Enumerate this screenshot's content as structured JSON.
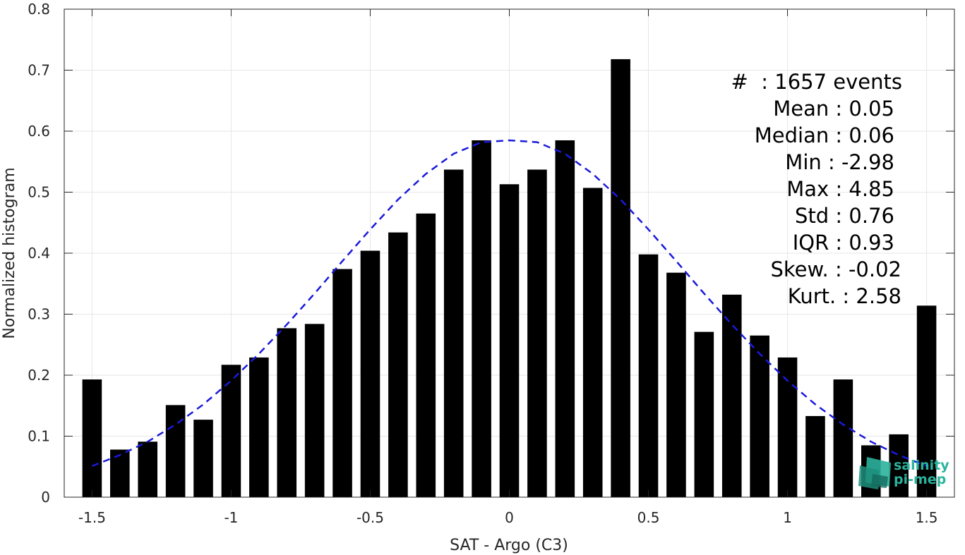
{
  "chart_data": {
    "type": "bar",
    "xlabel": "SAT - Argo (C3)",
    "ylabel": "Normalized histogram",
    "xlim": [
      -1.6,
      1.6
    ],
    "ylim": [
      0,
      0.8
    ],
    "grid": true,
    "x_ticks": [
      -1.5,
      -1,
      -0.5,
      0,
      0.5,
      1,
      1.5
    ],
    "x_tick_labels": [
      "-1.5",
      "-1",
      "-0.5",
      "0",
      "0.5",
      "1",
      "1.5"
    ],
    "y_ticks": [
      0,
      0.1,
      0.2,
      0.3,
      0.4,
      0.5,
      0.6,
      0.7,
      0.8
    ],
    "y_tick_labels": [
      "0",
      "0.1",
      "0.2",
      "0.3",
      "0.4",
      "0.5",
      "0.6",
      "0.7",
      "0.8"
    ],
    "series": [
      {
        "kind": "bar",
        "color": "#000000",
        "x": [
          -1.5,
          -1.4,
          -1.3,
          -1.2,
          -1.1,
          -1.0,
          -0.9,
          -0.8,
          -0.7,
          -0.6,
          -0.5,
          -0.4,
          -0.3,
          -0.2,
          -0.1,
          0.0,
          0.1,
          0.2,
          0.3,
          0.4,
          0.5,
          0.6,
          0.7,
          0.8,
          0.9,
          1.0,
          1.1,
          1.2,
          1.3,
          1.4,
          1.5
        ],
        "values": [
          0.193,
          0.078,
          0.091,
          0.151,
          0.127,
          0.217,
          0.229,
          0.277,
          0.284,
          0.374,
          0.404,
          0.434,
          0.465,
          0.537,
          0.585,
          0.513,
          0.537,
          0.585,
          0.507,
          0.718,
          0.398,
          0.368,
          0.271,
          0.332,
          0.265,
          0.229,
          0.133,
          0.193,
          0.085,
          0.103,
          0.314
        ]
      },
      {
        "kind": "line",
        "style": "dashed",
        "color": "#1a1adb",
        "x": [
          -1.5,
          -1.4,
          -1.3,
          -1.2,
          -1.1,
          -1.0,
          -0.9,
          -0.8,
          -0.7,
          -0.6,
          -0.5,
          -0.4,
          -0.3,
          -0.2,
          -0.1,
          0.0,
          0.1,
          0.2,
          0.3,
          0.4,
          0.5,
          0.6,
          0.7,
          0.8,
          0.9,
          1.0,
          1.1,
          1.2,
          1.3,
          1.4,
          1.5
        ],
        "values": [
          0.051,
          0.069,
          0.091,
          0.119,
          0.152,
          0.191,
          0.235,
          0.283,
          0.334,
          0.387,
          0.439,
          0.488,
          0.53,
          0.563,
          0.582,
          0.585,
          0.582,
          0.563,
          0.53,
          0.488,
          0.439,
          0.387,
          0.334,
          0.283,
          0.235,
          0.191,
          0.152,
          0.119,
          0.091,
          0.069,
          0.051
        ]
      }
    ],
    "annotations": [
      "#  : 1657 events",
      "Mean : 0.05",
      "Median : 0.06",
      "Min : -2.98",
      "Max : 4.85",
      "Std : 0.76",
      "IQR : 0.93",
      "Skew. : -0.02",
      "Kurt. : 2.58"
    ]
  },
  "logo": {
    "line1": "salinity",
    "line2": "pi-mep"
  }
}
